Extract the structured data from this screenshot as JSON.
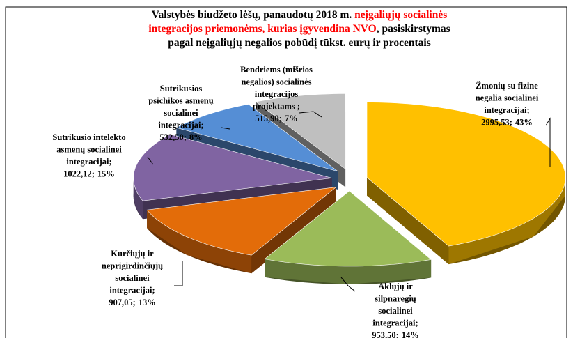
{
  "chart_data": {
    "type": "pie3d",
    "title_lines": [
      [
        {
          "text": "Valstybės biudžeto lėšų, panaudotų  2018 m. ",
          "color": "#000000"
        },
        {
          "text": "neįgaliųjų socialinės",
          "color": "#ff0000"
        }
      ],
      [
        {
          "text": "integracijos priemonėms, kurias įgyvendina NVO",
          "color": "#ff0000"
        },
        {
          "text": ", pasiskirstymas",
          "color": "#000000"
        }
      ],
      [
        {
          "text": "pagal neįgaliųjų negalios pobūdį tūkst. eurų ir procentais",
          "color": "#000000"
        }
      ]
    ],
    "categories": [
      [
        "Žmonių su fizine",
        "negalia socialinei",
        "integracijai;"
      ],
      [
        "Aklųjų ir",
        "silpnaregių",
        "socialinei",
        "integracijai;"
      ],
      [
        "Kurčiųjų ir",
        "neprigirdinčiųjų",
        "socialinei",
        "integracijai;"
      ],
      [
        "Sutrikusio intelekto",
        "asmenų socialinei",
        "integracijai;"
      ],
      [
        "Sutrikusios",
        "psichikos asmenų",
        "socialinei",
        "integracijai;"
      ],
      [
        "Bendriems (mišrios",
        "negalios) socialinės",
        "integracijos",
        "projektams  ;"
      ]
    ],
    "values": [
      2995.53,
      953.5,
      907.05,
      1022.12,
      532.5,
      515.9
    ],
    "value_labels": [
      "2995,53;",
      "953,50;",
      "907,05;",
      "1022,12;",
      "532,50;",
      "515,90;"
    ],
    "percents": [
      43,
      14,
      13,
      15,
      8,
      7
    ],
    "percent_labels": [
      "43%",
      "14%",
      "13%",
      "15%",
      "8%",
      "7%"
    ],
    "colors": [
      "#ffc000",
      "#9bbb59",
      "#e36c09",
      "#8064a2",
      "#558ed5",
      "#bfbfbf"
    ]
  }
}
